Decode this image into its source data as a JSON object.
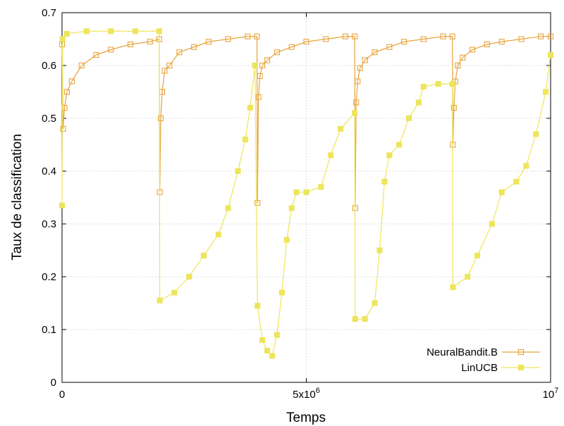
{
  "chart_data": {
    "type": "line",
    "title": "",
    "xlabel": "Temps",
    "ylabel": "Taux de classification",
    "xlim": [
      0,
      10000000
    ],
    "ylim": [
      0,
      0.7
    ],
    "x_ticks": [
      0,
      5000000,
      10000000
    ],
    "x_tick_labels": [
      {
        "base": "0",
        "exp": ""
      },
      {
        "base": "5x10",
        "exp": "6"
      },
      {
        "base": "10",
        "exp": "7"
      }
    ],
    "y_ticks": [
      0,
      0.1,
      0.2,
      0.3,
      0.4,
      0.5,
      0.6,
      0.7
    ],
    "y_tick_labels": [
      "0",
      "0.1",
      "0.2",
      "0.3",
      "0.4",
      "0.5",
      "0.6",
      "0.7"
    ],
    "grid": true,
    "legend_position": "bottom-right",
    "series": [
      {
        "name": "NeuralBandit.B",
        "color": "#e8a33a",
        "marker": "open-square",
        "points": [
          [
            0,
            0.64
          ],
          [
            20000,
            0.48
          ],
          [
            50000,
            0.52
          ],
          [
            100000,
            0.55
          ],
          [
            200000,
            0.57
          ],
          [
            400000,
            0.6
          ],
          [
            700000,
            0.62
          ],
          [
            1000000,
            0.63
          ],
          [
            1400000,
            0.64
          ],
          [
            1800000,
            0.645
          ],
          [
            1990000,
            0.65
          ],
          [
            2000000,
            0.36
          ],
          [
            2020000,
            0.5
          ],
          [
            2050000,
            0.55
          ],
          [
            2100000,
            0.59
          ],
          [
            2200000,
            0.6
          ],
          [
            2400000,
            0.625
          ],
          [
            2700000,
            0.635
          ],
          [
            3000000,
            0.645
          ],
          [
            3400000,
            0.65
          ],
          [
            3800000,
            0.655
          ],
          [
            3990000,
            0.655
          ],
          [
            4000000,
            0.34
          ],
          [
            4020000,
            0.54
          ],
          [
            4050000,
            0.58
          ],
          [
            4100000,
            0.6
          ],
          [
            4200000,
            0.61
          ],
          [
            4400000,
            0.625
          ],
          [
            4700000,
            0.635
          ],
          [
            5000000,
            0.645
          ],
          [
            5400000,
            0.65
          ],
          [
            5800000,
            0.655
          ],
          [
            5990000,
            0.655
          ],
          [
            6000000,
            0.33
          ],
          [
            6020000,
            0.53
          ],
          [
            6050000,
            0.57
          ],
          [
            6100000,
            0.595
          ],
          [
            6200000,
            0.61
          ],
          [
            6400000,
            0.625
          ],
          [
            6700000,
            0.635
          ],
          [
            7000000,
            0.645
          ],
          [
            7400000,
            0.65
          ],
          [
            7800000,
            0.655
          ],
          [
            7990000,
            0.655
          ],
          [
            8000000,
            0.45
          ],
          [
            8020000,
            0.52
          ],
          [
            8050000,
            0.57
          ],
          [
            8100000,
            0.6
          ],
          [
            8200000,
            0.615
          ],
          [
            8400000,
            0.63
          ],
          [
            8700000,
            0.64
          ],
          [
            9000000,
            0.645
          ],
          [
            9400000,
            0.65
          ],
          [
            9800000,
            0.655
          ],
          [
            10000000,
            0.655
          ]
        ]
      },
      {
        "name": "LinUCB",
        "color": "#ede55a",
        "marker": "filled-square",
        "points": [
          [
            0,
            0.335
          ],
          [
            10000,
            0.65
          ],
          [
            100000,
            0.66
          ],
          [
            500000,
            0.665
          ],
          [
            1000000,
            0.665
          ],
          [
            1500000,
            0.665
          ],
          [
            1990000,
            0.665
          ],
          [
            2000000,
            0.155
          ],
          [
            2300000,
            0.17
          ],
          [
            2600000,
            0.2
          ],
          [
            2900000,
            0.24
          ],
          [
            3200000,
            0.28
          ],
          [
            3400000,
            0.33
          ],
          [
            3600000,
            0.4
          ],
          [
            3750000,
            0.46
          ],
          [
            3850000,
            0.52
          ],
          [
            3950000,
            0.6
          ],
          [
            4000000,
            0.145
          ],
          [
            4100000,
            0.08
          ],
          [
            4200000,
            0.06
          ],
          [
            4300000,
            0.05
          ],
          [
            4400000,
            0.09
          ],
          [
            4500000,
            0.17
          ],
          [
            4600000,
            0.27
          ],
          [
            4700000,
            0.33
          ],
          [
            4800000,
            0.36
          ],
          [
            5000000,
            0.36
          ],
          [
            5300000,
            0.37
          ],
          [
            5500000,
            0.43
          ],
          [
            5700000,
            0.48
          ],
          [
            5990000,
            0.51
          ],
          [
            6000000,
            0.12
          ],
          [
            6200000,
            0.12
          ],
          [
            6400000,
            0.15
          ],
          [
            6500000,
            0.25
          ],
          [
            6600000,
            0.38
          ],
          [
            6700000,
            0.43
          ],
          [
            6900000,
            0.45
          ],
          [
            7100000,
            0.5
          ],
          [
            7300000,
            0.53
          ],
          [
            7400000,
            0.56
          ],
          [
            7700000,
            0.565
          ],
          [
            7990000,
            0.565
          ],
          [
            8000000,
            0.18
          ],
          [
            8300000,
            0.2
          ],
          [
            8500000,
            0.24
          ],
          [
            8800000,
            0.3
          ],
          [
            9000000,
            0.36
          ],
          [
            9300000,
            0.38
          ],
          [
            9500000,
            0.41
          ],
          [
            9700000,
            0.47
          ],
          [
            9900000,
            0.55
          ],
          [
            10000000,
            0.62
          ]
        ]
      }
    ]
  }
}
